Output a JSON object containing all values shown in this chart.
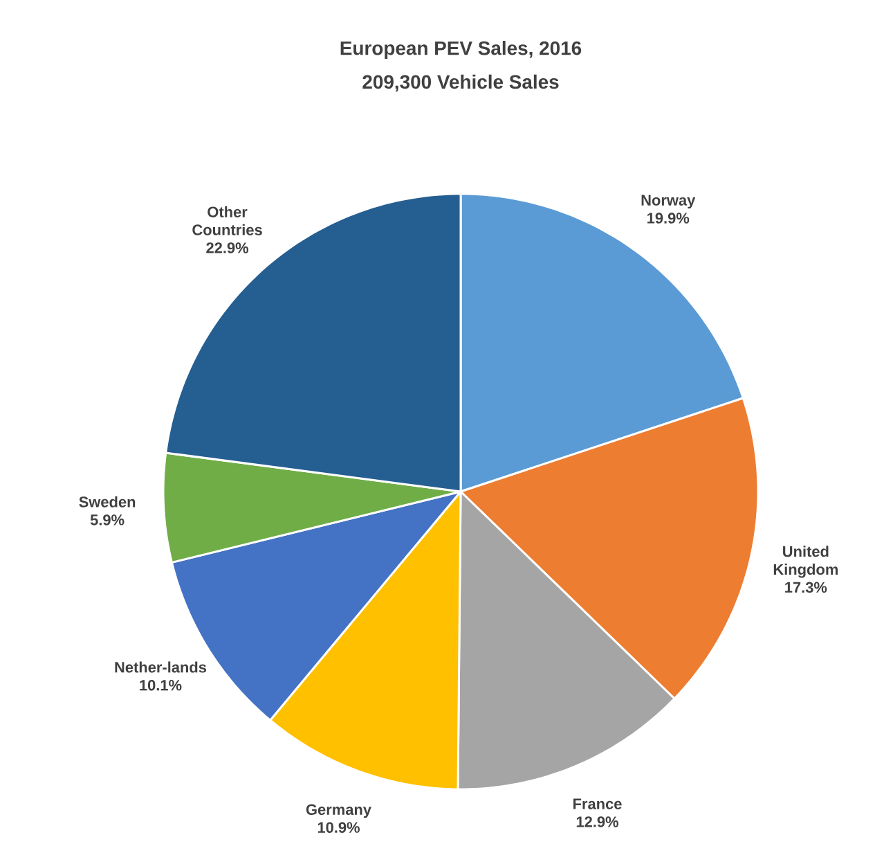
{
  "chart_data": {
    "type": "pie",
    "title": "European PEV Sales, 2016",
    "subtitle": "209,300 Vehicle Sales",
    "categories": [
      "Norway",
      "United Kingdom",
      "France",
      "Germany",
      "Nether-lands",
      "Sweden",
      "Other Countries"
    ],
    "values": [
      19.9,
      17.3,
      12.9,
      10.9,
      10.1,
      5.9,
      22.9
    ],
    "colors": [
      "#5b9bd5",
      "#ed7d31",
      "#a5a5a5",
      "#ffc000",
      "#4472c4",
      "#70ad47",
      "#255e91"
    ],
    "value_labels": [
      "19.9%",
      "17.3%",
      "12.9%",
      "10.9%",
      "10.1%",
      "5.9%",
      "22.9%"
    ]
  }
}
